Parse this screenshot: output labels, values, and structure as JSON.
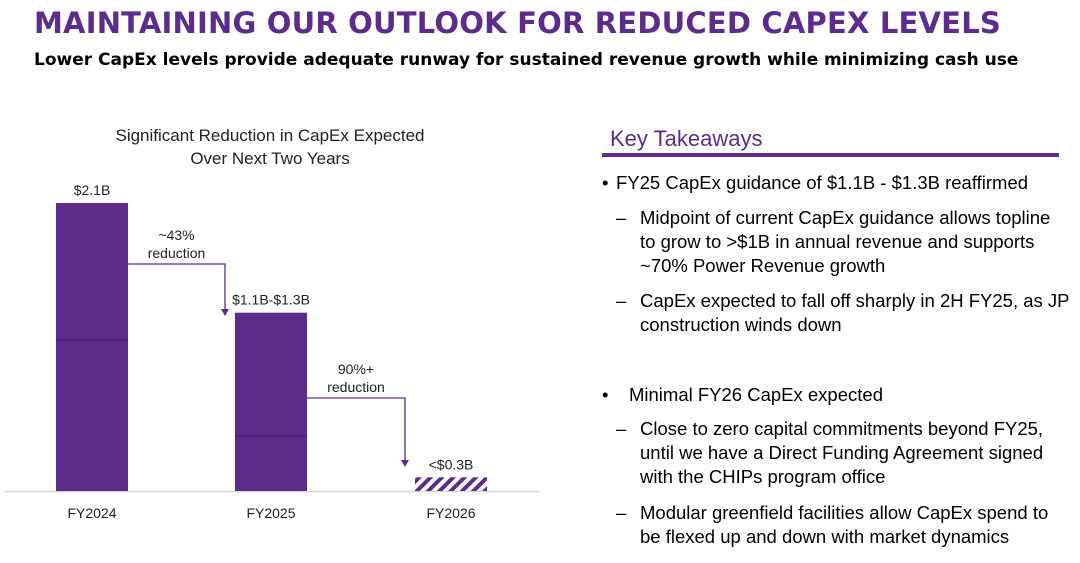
{
  "header": {
    "title": "MAINTAINING OUR OUTLOOK FOR REDUCED CAPEX LEVELS",
    "subtitle": "Lower CapEx levels provide adequate runway for sustained revenue growth while minimizing cash use"
  },
  "chart_data": {
    "type": "bar",
    "title": "Significant Reduction in CapEx Expected",
    "subtitle": "Over Next Two Years",
    "categories": [
      "FY2024",
      "FY2025",
      "FY2026"
    ],
    "unit": "$B",
    "series": [
      {
        "values": [
          2.1,
          1.3,
          0.1
        ],
        "data_labels": [
          "$2.1B",
          "$1.1B-$1.3B",
          "<$0.3B"
        ]
      }
    ],
    "segment_split": [
      1.1,
      0.4,
      null
    ],
    "last_bar_style": "hatched",
    "annotations": [
      {
        "from": "FY2024",
        "to": "FY2025",
        "text": [
          "~43%",
          "reduction"
        ]
      },
      {
        "from": "FY2025",
        "to": "FY2026",
        "text": [
          "90%+",
          "reduction"
        ]
      }
    ],
    "ylim": [
      0,
      2.1
    ],
    "grid": false,
    "legend": "none",
    "colors": {
      "bar": "#5b2c8c",
      "divider": "#3e1a66",
      "axis": "#d6d6d6"
    }
  },
  "takeaways": {
    "heading": "Key Takeaways",
    "bullet1": {
      "mark": "•",
      "text": "FY25 CapEx guidance of $1.1B - $1.3B reaffirmed",
      "subs": [
        {
          "mark": "–",
          "lines": [
            "Midpoint of current CapEx guidance allows topline",
            "to grow to >$1B in annual revenue and supports",
            "~70% Power Revenue growth"
          ]
        },
        {
          "mark": "–",
          "lines": [
            "CapEx expected to fall off sharply in 2H FY25, as JP",
            "construction winds down"
          ]
        }
      ]
    },
    "bullet2": {
      "mark": "•",
      "text": "Minimal FY26 CapEx expected",
      "subs": [
        {
          "mark": "–",
          "lines": [
            "Close to zero capital commitments beyond FY25,",
            "until we have a Direct Funding Agreement signed",
            "with the CHIPs program office"
          ]
        },
        {
          "mark": "–",
          "lines": [
            "Modular greenfield facilities allow CapEx spend to",
            "be flexed up and down with market dynamics"
          ]
        }
      ]
    }
  }
}
